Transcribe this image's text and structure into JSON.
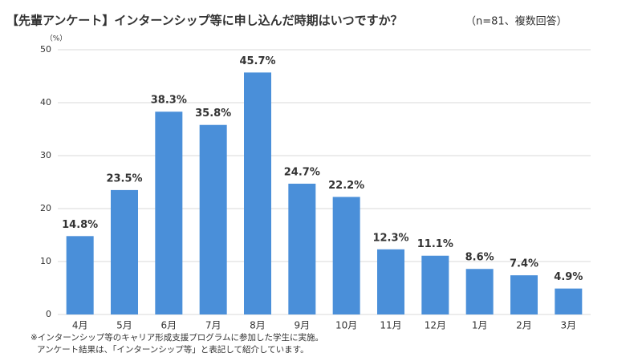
{
  "chart_data": {
    "type": "bar",
    "title": "【先輩アンケート】インターンシップ等に申し込んだ時期はいつですか？",
    "subtitle": "（n=81、複数回答）",
    "y_label": "（%）",
    "categories": [
      "4月",
      "5月",
      "6月",
      "7月",
      "8月",
      "9月",
      "10月",
      "11月",
      "12月",
      "1月",
      "2月",
      "3月"
    ],
    "values": [
      14.8,
      23.5,
      38.3,
      35.8,
      45.7,
      24.7,
      22.2,
      12.3,
      11.1,
      8.6,
      7.4,
      4.9
    ],
    "value_labels": [
      "14.8%",
      "23.5%",
      "38.3%",
      "35.8%",
      "45.7%",
      "24.7%",
      "22.2%",
      "12.3%",
      "11.1%",
      "8.6%",
      "7.4%",
      "4.9%"
    ],
    "color": "#4a8fd9",
    "ylim": [
      0,
      50
    ],
    "yticks": [
      0,
      10,
      20,
      30,
      40,
      50
    ],
    "grid": true,
    "notes": [
      "※インターンシップ等のキャリア形成支援プログラムに参加した学生に実施。",
      "アンケート結果は、「インターンシップ等」と表記して紹介しています。"
    ]
  }
}
